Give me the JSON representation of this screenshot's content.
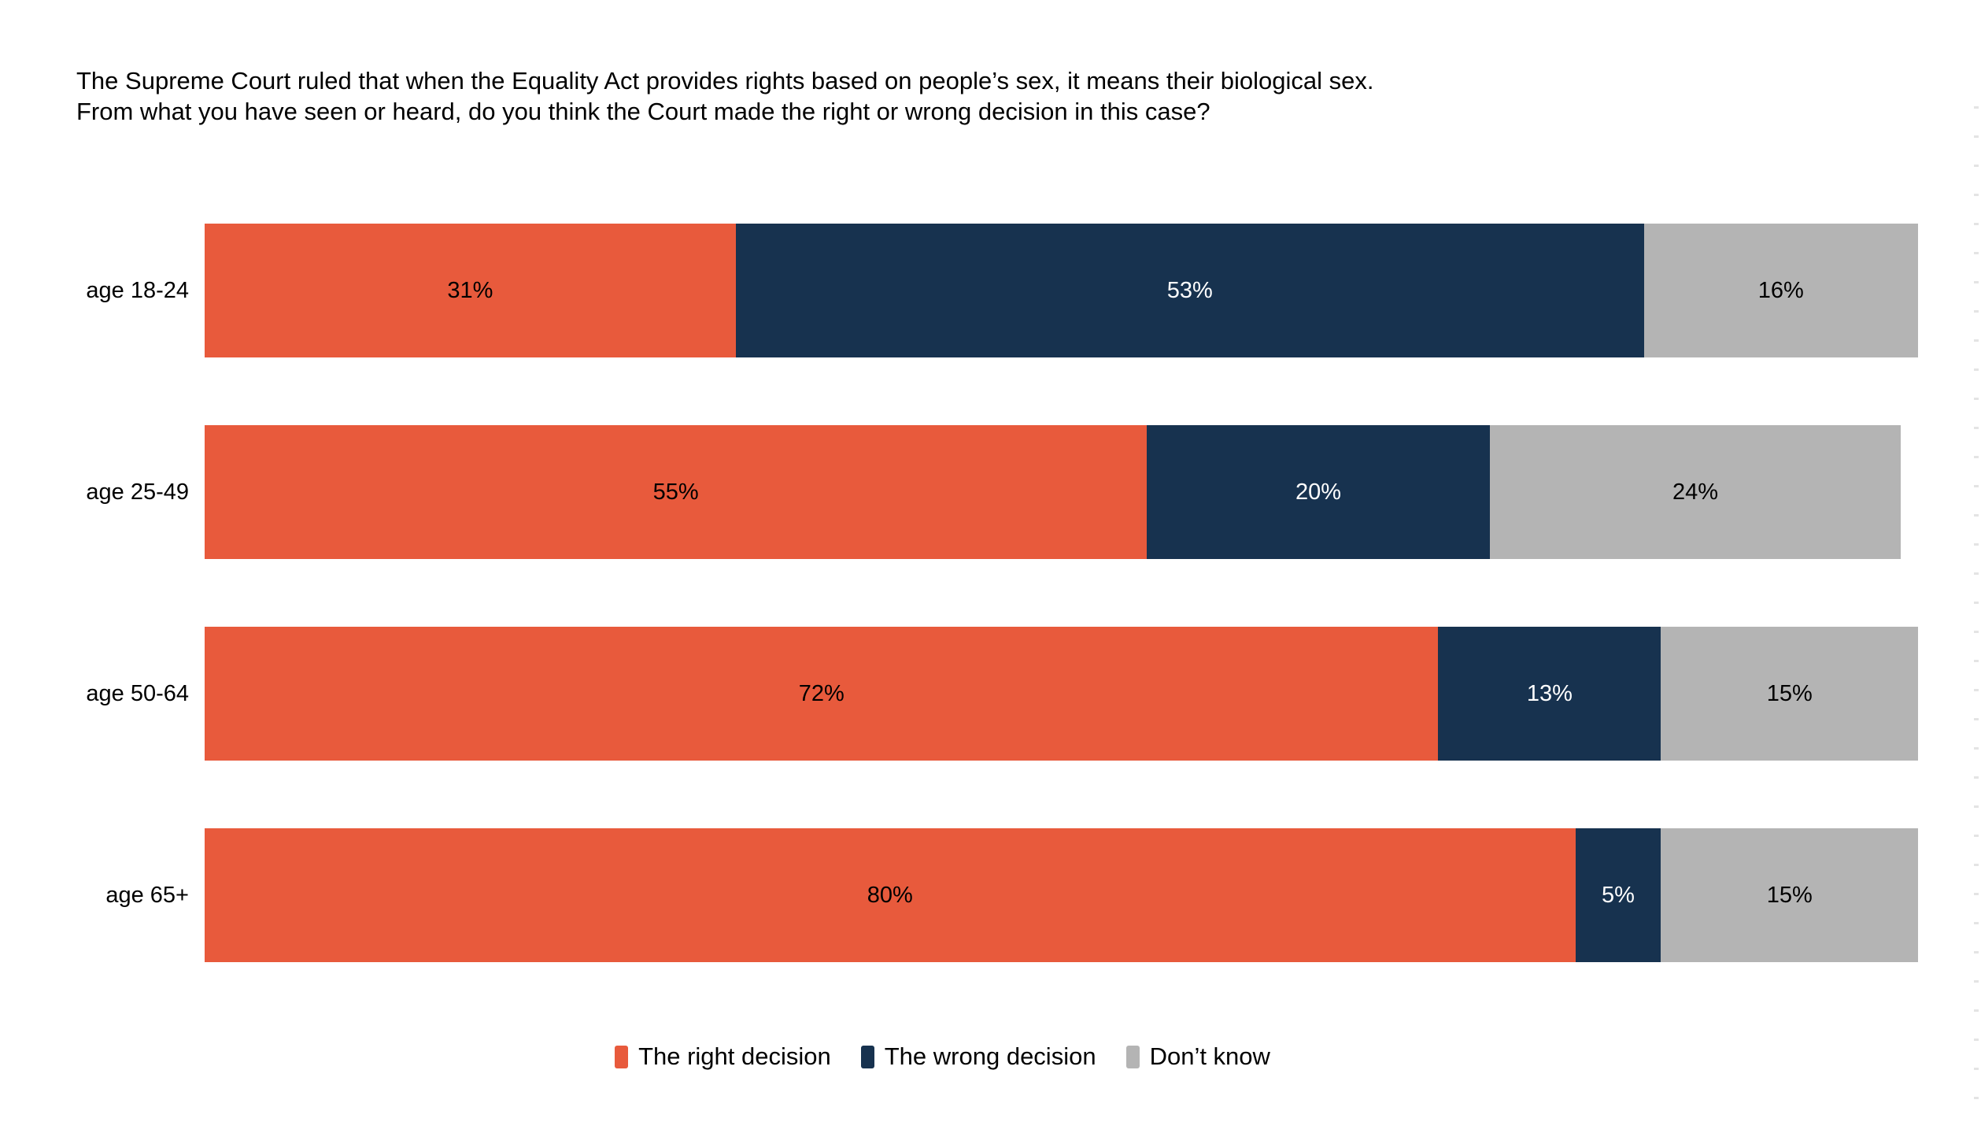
{
  "title": {
    "lines": [
      "The Supreme Court ruled that when the Equality Act provides rights based on people’s sex, it means their biological sex.",
      "From what you have seen or heard, do you think the Court made the right or wrong decision in this case?"
    ]
  },
  "chart_data": {
    "type": "bar",
    "variant": "stacked-horizontal",
    "title": "The Supreme Court ruled that when the Equality Act provides rights based on people’s sex, it means their biological sex. From what you have seen or heard, do you think the Court made the right or wrong decision in this case?",
    "categories": [
      "age 18-24",
      "age 25-49",
      "age 50-64",
      "age 65+"
    ],
    "series": [
      {
        "name": "The right decision",
        "color": "#E85A3C",
        "label_color": "#000000",
        "values": [
          31,
          55,
          72,
          80
        ]
      },
      {
        "name": "The wrong decision",
        "color": "#17324F",
        "label_color": "#FFFFFF",
        "values": [
          53,
          20,
          13,
          5
        ]
      },
      {
        "name": "Don’t know",
        "color": "#B4B4B4",
        "label_color": "#000000",
        "values": [
          16,
          24,
          15,
          15
        ]
      }
    ],
    "value_suffix": "%",
    "xlim": [
      0,
      100
    ],
    "grid": false,
    "legend_position": "bottom",
    "background": "#ffffff"
  }
}
